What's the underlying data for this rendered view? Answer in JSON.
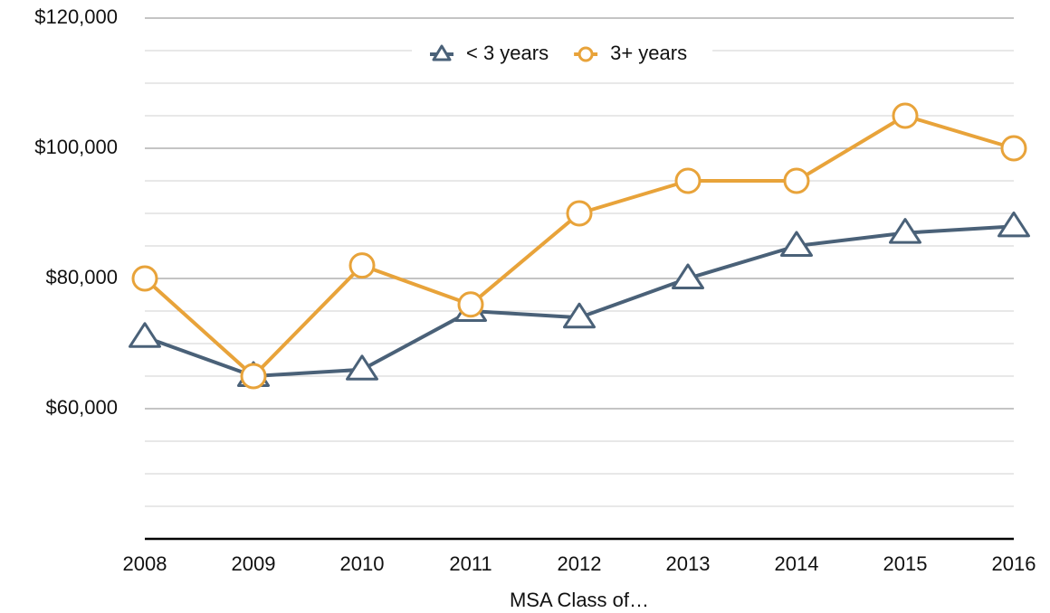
{
  "chart_data": {
    "type": "line",
    "x_label": "MSA Class of…",
    "categories": [
      "2008",
      "2009",
      "2010",
      "2011",
      "2012",
      "2013",
      "2014",
      "2015",
      "2016"
    ],
    "series": [
      {
        "name": "< 3 years",
        "color": "#4a6178",
        "marker": "triangle",
        "values": [
          71000,
          65000,
          66000,
          75000,
          74000,
          80000,
          85000,
          87000,
          88000
        ]
      },
      {
        "name": "3+ years",
        "color": "#e8a33a",
        "marker": "circle",
        "values": [
          80000,
          65000,
          82000,
          76000,
          90000,
          95000,
          95000,
          105000,
          100000
        ]
      }
    ],
    "ylim": [
      40000,
      120000
    ],
    "yticks": [
      {
        "value": 60000,
        "label": "$60,000"
      },
      {
        "value": 80000,
        "label": "$80,000"
      },
      {
        "value": 100000,
        "label": "$100,000"
      },
      {
        "value": 120000,
        "label": "$120,000"
      }
    ],
    "minor_yticks": [
      45000,
      50000,
      55000,
      65000,
      70000,
      75000,
      85000,
      90000,
      95000,
      105000,
      110000,
      115000
    ],
    "grid": true,
    "legend": "top"
  }
}
